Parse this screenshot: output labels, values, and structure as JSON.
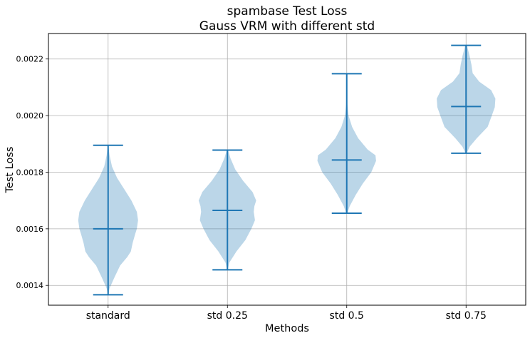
{
  "chart_data": {
    "type": "violin",
    "title": "spambase Test Loss",
    "subtitle": "Gauss VRM with different std",
    "xlabel": "Methods",
    "ylabel": "Test Loss",
    "ylim": [
      0.00133,
      0.00229
    ],
    "yticks": [
      "0.0014",
      "0.0016",
      "0.0018",
      "0.0020",
      "0.0022"
    ],
    "ytick_values": [
      0.0014,
      0.0016,
      0.0018,
      0.002,
      0.0022
    ],
    "grid": true,
    "categories": [
      "standard",
      "std 0.25",
      "std 0.5",
      "std 0.75"
    ],
    "series": [
      {
        "category": "standard",
        "min": 0.001367,
        "mean": 0.0016,
        "max": 0.001895,
        "density": [
          [
            0.001367,
            0.01
          ],
          [
            0.00139,
            0.05
          ],
          [
            0.00143,
            0.22
          ],
          [
            0.00147,
            0.4
          ],
          [
            0.0015,
            0.64
          ],
          [
            0.00152,
            0.76
          ],
          [
            0.00155,
            0.82
          ],
          [
            0.00158,
            0.9
          ],
          [
            0.0016,
            0.96
          ],
          [
            0.00163,
            1.0
          ],
          [
            0.00166,
            0.96
          ],
          [
            0.0017,
            0.78
          ],
          [
            0.00174,
            0.54
          ],
          [
            0.00178,
            0.3
          ],
          [
            0.00182,
            0.13
          ],
          [
            0.00186,
            0.05
          ],
          [
            0.001895,
            0.01
          ]
        ]
      },
      {
        "category": "std 0.25",
        "min": 0.001455,
        "mean": 0.001665,
        "max": 0.001878,
        "density": [
          [
            0.001455,
            0.01
          ],
          [
            0.00148,
            0.06
          ],
          [
            0.00152,
            0.3
          ],
          [
            0.00156,
            0.6
          ],
          [
            0.0016,
            0.8
          ],
          [
            0.00163,
            0.92
          ],
          [
            0.00166,
            0.88
          ],
          [
            0.00168,
            0.9
          ],
          [
            0.0017,
            0.96
          ],
          [
            0.00173,
            0.84
          ],
          [
            0.00177,
            0.52
          ],
          [
            0.00181,
            0.26
          ],
          [
            0.00185,
            0.1
          ],
          [
            0.001878,
            0.02
          ]
        ]
      },
      {
        "category": "std 0.5",
        "min": 0.001655,
        "mean": 0.001843,
        "max": 0.002148,
        "density": [
          [
            0.001655,
            0.02
          ],
          [
            0.00168,
            0.1
          ],
          [
            0.00172,
            0.3
          ],
          [
            0.00176,
            0.54
          ],
          [
            0.0018,
            0.82
          ],
          [
            0.00184,
            0.98
          ],
          [
            0.00186,
            0.96
          ],
          [
            0.00188,
            0.7
          ],
          [
            0.00192,
            0.38
          ],
          [
            0.00196,
            0.18
          ],
          [
            0.002,
            0.06
          ],
          [
            0.00204,
            0.02
          ],
          [
            0.002148,
            0.005
          ]
        ]
      },
      {
        "category": "std 0.75",
        "min": 0.001867,
        "mean": 0.002032,
        "max": 0.002248,
        "density": [
          [
            0.001867,
            0.02
          ],
          [
            0.00189,
            0.12
          ],
          [
            0.00192,
            0.36
          ],
          [
            0.00196,
            0.72
          ],
          [
            0.002,
            0.86
          ],
          [
            0.00203,
            0.96
          ],
          [
            0.00206,
            0.98
          ],
          [
            0.00209,
            0.84
          ],
          [
            0.00212,
            0.44
          ],
          [
            0.00215,
            0.22
          ],
          [
            0.00218,
            0.18
          ],
          [
            0.00221,
            0.12
          ],
          [
            0.002248,
            0.03
          ]
        ]
      }
    ],
    "colors": {
      "fill": "#1f77b4",
      "fill_opacity": 0.3,
      "line": "#1f77b4"
    }
  }
}
